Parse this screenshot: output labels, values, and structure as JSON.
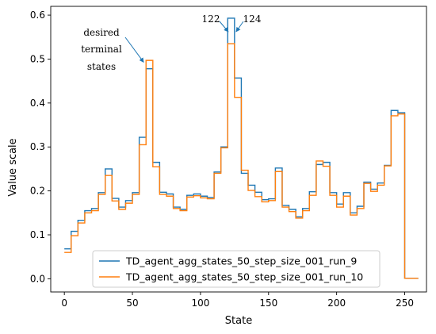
{
  "chart_data": {
    "type": "line",
    "xlabel": "State",
    "ylabel": "Value scale",
    "xlim": [
      -10,
      266
    ],
    "ylim": [
      -0.03,
      0.62
    ],
    "x_ticks": [
      0,
      50,
      100,
      150,
      200,
      250
    ],
    "x_tick_labels": [
      "0",
      "50",
      "100",
      "150",
      "200",
      "250"
    ],
    "y_ticks": [
      0.0,
      0.1,
      0.2,
      0.3,
      0.4,
      0.5,
      0.6
    ],
    "y_tick_labels": [
      "0.0",
      "0.1",
      "0.2",
      "0.3",
      "0.4",
      "0.5",
      "0.6"
    ],
    "grid": false,
    "legend_position": "lower-center",
    "series": [
      {
        "name": "TD_agent_agg_states_50_step_size_001_run_9",
        "color": "#1f77b4",
        "steps": [
          [
            0,
            0.068
          ],
          [
            5,
            0.108
          ],
          [
            10,
            0.133
          ],
          [
            15,
            0.155
          ],
          [
            20,
            0.16
          ],
          [
            25,
            0.196
          ],
          [
            30,
            0.25
          ],
          [
            35,
            0.183
          ],
          [
            40,
            0.163
          ],
          [
            45,
            0.178
          ],
          [
            50,
            0.196
          ],
          [
            55,
            0.322
          ],
          [
            60,
            0.478
          ],
          [
            65,
            0.265
          ],
          [
            70,
            0.197
          ],
          [
            75,
            0.193
          ],
          [
            80,
            0.163
          ],
          [
            85,
            0.158
          ],
          [
            90,
            0.19
          ],
          [
            95,
            0.193
          ],
          [
            100,
            0.188
          ],
          [
            105,
            0.185
          ],
          [
            110,
            0.243
          ],
          [
            115,
            0.3
          ],
          [
            120,
            0.593
          ],
          [
            125,
            0.457
          ],
          [
            130,
            0.24
          ],
          [
            135,
            0.213
          ],
          [
            140,
            0.197
          ],
          [
            145,
            0.18
          ],
          [
            150,
            0.182
          ],
          [
            155,
            0.252
          ],
          [
            160,
            0.167
          ],
          [
            165,
            0.158
          ],
          [
            170,
            0.141
          ],
          [
            175,
            0.16
          ],
          [
            180,
            0.198
          ],
          [
            185,
            0.26
          ],
          [
            190,
            0.265
          ],
          [
            195,
            0.196
          ],
          [
            200,
            0.17
          ],
          [
            205,
            0.196
          ],
          [
            210,
            0.15
          ],
          [
            215,
            0.165
          ],
          [
            220,
            0.22
          ],
          [
            225,
            0.204
          ],
          [
            230,
            0.218
          ],
          [
            235,
            0.258
          ],
          [
            240,
            0.383
          ],
          [
            245,
            0.378
          ],
          [
            250,
            0.001
          ],
          [
            255,
            0.001
          ]
        ]
      },
      {
        "name": "TD_agent_agg_states_50_step_size_001_run_10",
        "color": "#ff7f0e",
        "steps": [
          [
            0,
            0.06
          ],
          [
            5,
            0.098
          ],
          [
            10,
            0.127
          ],
          [
            15,
            0.15
          ],
          [
            20,
            0.155
          ],
          [
            25,
            0.192
          ],
          [
            30,
            0.235
          ],
          [
            35,
            0.177
          ],
          [
            40,
            0.158
          ],
          [
            45,
            0.172
          ],
          [
            50,
            0.192
          ],
          [
            55,
            0.305
          ],
          [
            60,
            0.497
          ],
          [
            65,
            0.255
          ],
          [
            70,
            0.192
          ],
          [
            75,
            0.188
          ],
          [
            80,
            0.16
          ],
          [
            85,
            0.155
          ],
          [
            90,
            0.186
          ],
          [
            95,
            0.189
          ],
          [
            100,
            0.184
          ],
          [
            105,
            0.182
          ],
          [
            110,
            0.24
          ],
          [
            115,
            0.298
          ],
          [
            120,
            0.535
          ],
          [
            125,
            0.413
          ],
          [
            130,
            0.247
          ],
          [
            135,
            0.201
          ],
          [
            140,
            0.187
          ],
          [
            145,
            0.175
          ],
          [
            150,
            0.178
          ],
          [
            155,
            0.244
          ],
          [
            160,
            0.163
          ],
          [
            165,
            0.153
          ],
          [
            170,
            0.138
          ],
          [
            175,
            0.155
          ],
          [
            180,
            0.19
          ],
          [
            185,
            0.268
          ],
          [
            190,
            0.256
          ],
          [
            195,
            0.19
          ],
          [
            200,
            0.163
          ],
          [
            205,
            0.188
          ],
          [
            210,
            0.145
          ],
          [
            215,
            0.16
          ],
          [
            220,
            0.217
          ],
          [
            225,
            0.199
          ],
          [
            230,
            0.213
          ],
          [
            235,
            0.257
          ],
          [
            240,
            0.371
          ],
          [
            245,
            0.375
          ],
          [
            250,
            0.001
          ],
          [
            255,
            0.001
          ]
        ]
      }
    ],
    "annotations": [
      {
        "id": "desired-terminal-states",
        "lines": [
          "desired",
          "terminal",
          "states"
        ],
        "points_to": [
          60,
          0.51
        ]
      },
      {
        "id": "state-122",
        "text": "122",
        "points_to": [
          121,
          0.535
        ]
      },
      {
        "id": "state-124",
        "text": "124",
        "points_to": [
          125,
          0.535
        ]
      }
    ]
  }
}
